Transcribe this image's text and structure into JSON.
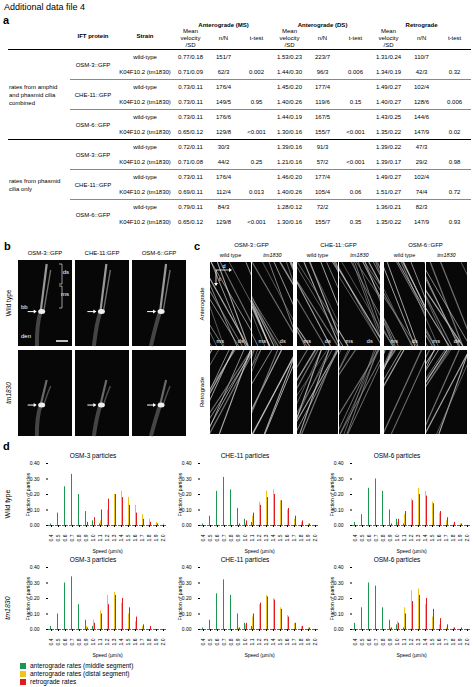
{
  "title": "Additional data file 4",
  "panel_a": {
    "label": "a",
    "columns": [
      "IFT protein",
      "Strain",
      "Anterograde (MS)",
      "Anterograde (DS)",
      "Retrograde"
    ],
    "subcolumns": [
      "Mean velocity /SD",
      "n/N",
      "t-test"
    ],
    "groups": [
      {
        "name": "rates from amphid and phasmid cilia combined",
        "proteins": [
          {
            "protein": "OSM-3::GFP",
            "rows": [
              [
                "wild-type",
                "0.77/0.18",
                "151/7",
                null,
                "1.53/0.23",
                "223/7",
                null,
                "1.31/0.24",
                "110/7",
                null
              ],
              [
                "K04F10.2 (tm1830)",
                "0.71/0.09",
                "62/3",
                "0.002",
                "1.44/0.30",
                "96/3",
                "0.006",
                "1.34/0.19",
                "42/3",
                "0.32"
              ]
            ]
          },
          {
            "protein": "CHE-11::GFP",
            "rows": [
              [
                "wild-type",
                "0.73/0.11",
                "176/4",
                null,
                "1.45/0.20",
                "177/4",
                null,
                "1.49/0.27",
                "102/4",
                null
              ],
              [
                "K04F10.2 (tm1830)",
                "0.73/0.11",
                "149/5",
                "0.95",
                "1.40/0.26",
                "119/6",
                "0.15",
                "1.40/0.27",
                "128/6",
                "0.006"
              ]
            ]
          },
          {
            "protein": "OSM-6::GFP",
            "rows": [
              [
                "wild-type",
                "0.73/0.11",
                "176/6",
                null,
                "1.44/0.19",
                "167/5",
                null,
                "1.43/0.25",
                "144/6",
                null
              ],
              [
                "K04F10.2 (tm1830)",
                "0.65/0.12",
                "129/8",
                "<0.001",
                "1.30/0.16",
                "155/7",
                "<0.001",
                "1.35/0.22",
                "147/9",
                "0.02"
              ]
            ]
          }
        ]
      },
      {
        "name": "rates from phasmid cilia only",
        "proteins": [
          {
            "protein": "OSM-3::GFP",
            "rows": [
              [
                "wild-type",
                "0.72/0.11",
                "30/3",
                null,
                "1.39/0.16",
                "91/3",
                null,
                "1.39/0.22",
                "47/3",
                null
              ],
              [
                "K04F10.2 (tm1830)",
                "0.71/0.08",
                "44/2",
                "0.25",
                "1.21/0.16",
                "57/2",
                "<0.001",
                "1.39/0.17",
                "29/2",
                "0.98"
              ]
            ]
          },
          {
            "protein": "CHE-11::GFP",
            "rows": [
              [
                "wild-type",
                "0.73/0.11",
                "176/4",
                null,
                "1.46/0.20",
                "177/4",
                null,
                "1.49/0.27",
                "102/4",
                null
              ],
              [
                "K04F10.2 (tm1830)",
                "0.69/0.11",
                "112/4",
                "0.013",
                "1.40/0.26",
                "105/4",
                "0.06",
                "1.51/0.27",
                "74/4",
                "0.72"
              ]
            ]
          },
          {
            "protein": "OSM-6::GFP",
            "rows": [
              [
                "wild-type",
                "0.79/0.11",
                "84/3",
                null,
                "1.28/0.12",
                "72/2",
                null,
                "1.36/0.21",
                "82/3",
                null
              ],
              [
                "K04F10.2 (tm1830)",
                "0.65/0.12",
                "129/8",
                "<0.001",
                "1.30/0.16",
                "155/7",
                "0.35",
                "1.35/0.22",
                "147/9",
                "0.93"
              ]
            ]
          }
        ]
      }
    ]
  },
  "panel_b": {
    "label": "b",
    "columns": [
      "OSM-3::GFP",
      "CHE-11:GFP",
      "OSM-6::GFP"
    ],
    "rows": [
      "Wild type",
      "tm1830"
    ],
    "annotations": [
      "ds",
      "ms",
      "bb",
      "den"
    ]
  },
  "panel_c": {
    "label": "c",
    "columns": [
      "OSM-3::GFP",
      "CHE-11::GFP",
      "OSM-6::GFP"
    ],
    "strains": [
      "wild type",
      "tm1830"
    ],
    "rows": [
      "Anterograde",
      "Retrograde"
    ],
    "segments": [
      "ms",
      "ds"
    ],
    "axes": [
      "d",
      "t"
    ]
  },
  "panel_d": {
    "label": "d",
    "rows": [
      "Wild type",
      "tm1830"
    ]
  },
  "chart_data": [
    {
      "type": "bar",
      "title": "OSM-3 particles",
      "x_label": "Speed (µm/s)",
      "y_label": "Fraction of particles",
      "categories": [
        "0.4",
        "0.5",
        "0.6",
        "0.7",
        "0.8",
        "0.9",
        "1.0",
        "1.1",
        "1.2",
        "1.3",
        "1.4",
        "1.5",
        "1.6",
        "1.7",
        "1.8",
        "1.9",
        "2.0"
      ],
      "ylim": [
        0,
        0.4
      ],
      "yticks": [
        0,
        0.1,
        0.2,
        0.3,
        0.4
      ],
      "series": [
        {
          "name": "anterograde rates (middle segment)",
          "color": "#1a9850",
          "values": [
            0.01,
            0.08,
            0.25,
            0.33,
            0.2,
            0.09,
            0.03,
            0.01,
            0,
            0,
            0,
            0,
            0,
            0,
            0,
            0,
            0
          ]
        },
        {
          "name": "anterograde rates (distal segment)",
          "color": "#f0c419",
          "values": [
            0,
            0,
            0,
            0,
            0,
            0,
            0,
            0.03,
            0.1,
            0.2,
            0.22,
            0.18,
            0.13,
            0.07,
            0.04,
            0.02,
            0.01
          ]
        },
        {
          "name": "retrograde rates",
          "color": "#e31a1c",
          "values": [
            0,
            0,
            0,
            0,
            0,
            0.02,
            0.05,
            0.1,
            0.17,
            0.2,
            0.18,
            0.13,
            0.08,
            0.04,
            0.02,
            0.01,
            0
          ]
        }
      ]
    },
    {
      "type": "bar",
      "title": "CHE-11 particles",
      "x_label": "Speed (µm/s)",
      "y_label": "Fraction of particles",
      "categories": [
        "0.4",
        "0.5",
        "0.6",
        "0.7",
        "0.8",
        "0.9",
        "1.0",
        "1.1",
        "1.2",
        "1.3",
        "1.4",
        "1.5",
        "1.6",
        "1.7",
        "1.8",
        "1.9",
        "2.0"
      ],
      "ylim": [
        0,
        0.4
      ],
      "yticks": [
        0,
        0.1,
        0.2,
        0.3,
        0.4
      ],
      "series": [
        {
          "name": "anterograde rates (middle segment)",
          "color": "#1a9850",
          "values": [
            0.01,
            0.06,
            0.22,
            0.31,
            0.23,
            0.11,
            0.04,
            0.02,
            0,
            0,
            0,
            0,
            0,
            0,
            0,
            0,
            0
          ]
        },
        {
          "name": "anterograde rates (distal segment)",
          "color": "#f0c419",
          "values": [
            0,
            0,
            0,
            0,
            0,
            0,
            0.01,
            0.06,
            0.15,
            0.22,
            0.23,
            0.16,
            0.1,
            0.04,
            0.02,
            0.01,
            0
          ]
        },
        {
          "name": "retrograde rates",
          "color": "#e31a1c",
          "values": [
            0,
            0,
            0,
            0,
            0,
            0.01,
            0.03,
            0.08,
            0.13,
            0.18,
            0.2,
            0.16,
            0.11,
            0.06,
            0.03,
            0.01,
            0
          ]
        }
      ]
    },
    {
      "type": "bar",
      "title": "OSM-6 particles",
      "x_label": "Speed (µm/s)",
      "y_label": "Fraction of particles",
      "categories": [
        "0.4",
        "0.5",
        "0.6",
        "0.7",
        "0.8",
        "0.9",
        "1.0",
        "1.1",
        "1.2",
        "1.3",
        "1.4",
        "1.5",
        "1.6",
        "1.7",
        "1.8",
        "1.9",
        "2.0"
      ],
      "ylim": [
        0,
        0.4
      ],
      "yticks": [
        0,
        0.1,
        0.2,
        0.3,
        0.4
      ],
      "series": [
        {
          "name": "anterograde rates (middle segment)",
          "color": "#1a9850",
          "values": [
            0.02,
            0.07,
            0.24,
            0.3,
            0.22,
            0.1,
            0.04,
            0.01,
            0,
            0,
            0,
            0,
            0,
            0,
            0,
            0,
            0
          ]
        },
        {
          "name": "anterograde rates (distal segment)",
          "color": "#f0c419",
          "values": [
            0,
            0,
            0,
            0,
            0,
            0,
            0.02,
            0.07,
            0.17,
            0.24,
            0.22,
            0.15,
            0.08,
            0.03,
            0.01,
            0.01,
            0
          ]
        },
        {
          "name": "retrograde rates",
          "color": "#e31a1c",
          "values": [
            0,
            0,
            0,
            0,
            0,
            0.01,
            0.04,
            0.09,
            0.16,
            0.2,
            0.19,
            0.14,
            0.09,
            0.05,
            0.02,
            0.01,
            0
          ]
        }
      ]
    },
    {
      "type": "bar",
      "title": "OSM-3 particles",
      "x_label": "Speed (µm/s)",
      "y_label": "Fraction of particles",
      "categories": [
        "0.4",
        "0.5",
        "0.6",
        "0.7",
        "0.8",
        "0.9",
        "1.0",
        "1.1",
        "1.2",
        "1.3",
        "1.4",
        "1.5",
        "1.6",
        "1.7",
        "1.8",
        "1.9",
        "2.0"
      ],
      "ylim": [
        0,
        0.4
      ],
      "yticks": [
        0,
        0.1,
        0.2,
        0.3,
        0.4
      ],
      "series": [
        {
          "name": "anterograde rates (middle segment)",
          "color": "#1a9850",
          "values": [
            0.02,
            0.1,
            0.3,
            0.34,
            0.16,
            0.06,
            0.02,
            0,
            0,
            0,
            0,
            0,
            0,
            0,
            0,
            0,
            0
          ]
        },
        {
          "name": "anterograde rates (distal segment)",
          "color": "#f0c419",
          "values": [
            0,
            0,
            0,
            0,
            0,
            0.02,
            0.06,
            0.12,
            0.22,
            0.24,
            0.17,
            0.1,
            0.05,
            0.02,
            0,
            0,
            0
          ]
        },
        {
          "name": "retrograde rates",
          "color": "#e31a1c",
          "values": [
            0,
            0,
            0,
            0,
            0,
            0.01,
            0.04,
            0.1,
            0.16,
            0.22,
            0.2,
            0.14,
            0.08,
            0.03,
            0.02,
            0,
            0
          ]
        }
      ]
    },
    {
      "type": "bar",
      "title": "CHE-11 particles",
      "x_label": "Speed (µm/s)",
      "y_label": "Fraction of particles",
      "categories": [
        "0.4",
        "0.5",
        "0.6",
        "0.7",
        "0.8",
        "0.9",
        "1.0",
        "1.1",
        "1.2",
        "1.3",
        "1.4",
        "1.5",
        "1.6",
        "1.7",
        "1.8",
        "1.9",
        "2.0"
      ],
      "ylim": [
        0,
        0.4
      ],
      "yticks": [
        0,
        0.1,
        0.2,
        0.3,
        0.4
      ],
      "series": [
        {
          "name": "anterograde rates (middle segment)",
          "color": "#1a9850",
          "values": [
            0.01,
            0.06,
            0.23,
            0.32,
            0.22,
            0.1,
            0.04,
            0.02,
            0,
            0,
            0,
            0,
            0,
            0,
            0,
            0,
            0
          ]
        },
        {
          "name": "anterograde rates (distal segment)",
          "color": "#f0c419",
          "values": [
            0,
            0,
            0,
            0,
            0,
            0.01,
            0.03,
            0.08,
            0.16,
            0.22,
            0.2,
            0.14,
            0.09,
            0.04,
            0.02,
            0.01,
            0
          ]
        },
        {
          "name": "retrograde rates",
          "color": "#e31a1c",
          "values": [
            0,
            0,
            0,
            0,
            0,
            0.01,
            0.04,
            0.1,
            0.17,
            0.21,
            0.19,
            0.13,
            0.08,
            0.04,
            0.02,
            0.01,
            0
          ]
        }
      ]
    },
    {
      "type": "bar",
      "title": "OSM-6 particles",
      "x_label": "Speed (µm/s)",
      "y_label": "Fraction of particles",
      "categories": [
        "0.4",
        "0.5",
        "0.6",
        "0.7",
        "0.8",
        "0.9",
        "1.0",
        "1.1",
        "1.2",
        "1.3",
        "1.4",
        "1.5",
        "1.6",
        "1.7",
        "1.8",
        "1.9",
        "2.0"
      ],
      "ylim": [
        0,
        0.4
      ],
      "yticks": [
        0,
        0.1,
        0.2,
        0.3,
        0.4
      ],
      "series": [
        {
          "name": "anterograde rates (middle segment)",
          "color": "#1a9850",
          "values": [
            0.04,
            0.14,
            0.3,
            0.28,
            0.14,
            0.06,
            0.03,
            0.01,
            0,
            0,
            0,
            0,
            0,
            0,
            0,
            0,
            0
          ]
        },
        {
          "name": "anterograde rates (distal segment)",
          "color": "#f0c419",
          "values": [
            0,
            0,
            0,
            0,
            0,
            0.01,
            0.05,
            0.14,
            0.25,
            0.26,
            0.16,
            0.08,
            0.03,
            0.01,
            0.01,
            0,
            0
          ]
        },
        {
          "name": "retrograde rates",
          "color": "#e31a1c",
          "values": [
            0,
            0,
            0,
            0,
            0,
            0.01,
            0.04,
            0.1,
            0.18,
            0.22,
            0.2,
            0.13,
            0.07,
            0.03,
            0.01,
            0.01,
            0
          ]
        }
      ]
    }
  ]
}
